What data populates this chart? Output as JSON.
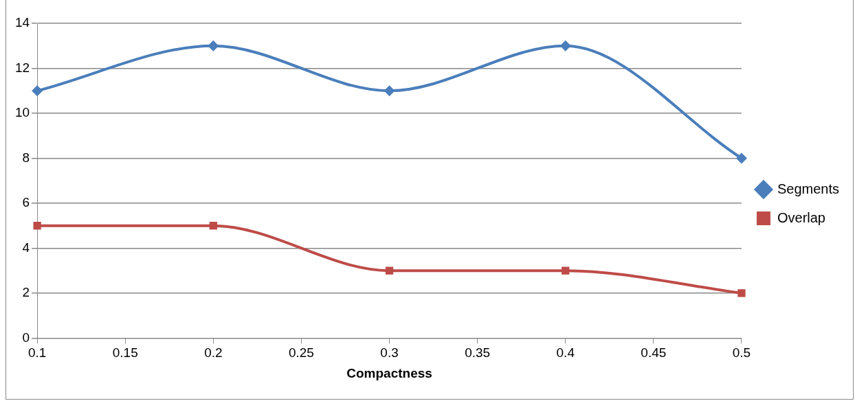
{
  "chart_data": {
    "type": "line",
    "xlabel": "Compactness",
    "x": [
      0.1,
      0.2,
      0.3,
      0.4,
      0.5
    ],
    "series": [
      {
        "name": "Segments",
        "color": "#4a7ebb",
        "marker": "diamond",
        "values": [
          11,
          13,
          11,
          13,
          8
        ]
      },
      {
        "name": "Overlap",
        "color": "#be4b48",
        "marker": "square",
        "values": [
          5,
          5,
          3,
          3,
          2
        ]
      }
    ],
    "xlim": [
      0.1,
      0.5
    ],
    "xticks": [
      0.1,
      0.15,
      0.2,
      0.25,
      0.3,
      0.35,
      0.4,
      0.45,
      0.5
    ],
    "ylim": [
      0,
      14
    ],
    "yticks": [
      0,
      2,
      4,
      6,
      8,
      10,
      12,
      14
    ],
    "grid": "y",
    "legend": "right"
  }
}
